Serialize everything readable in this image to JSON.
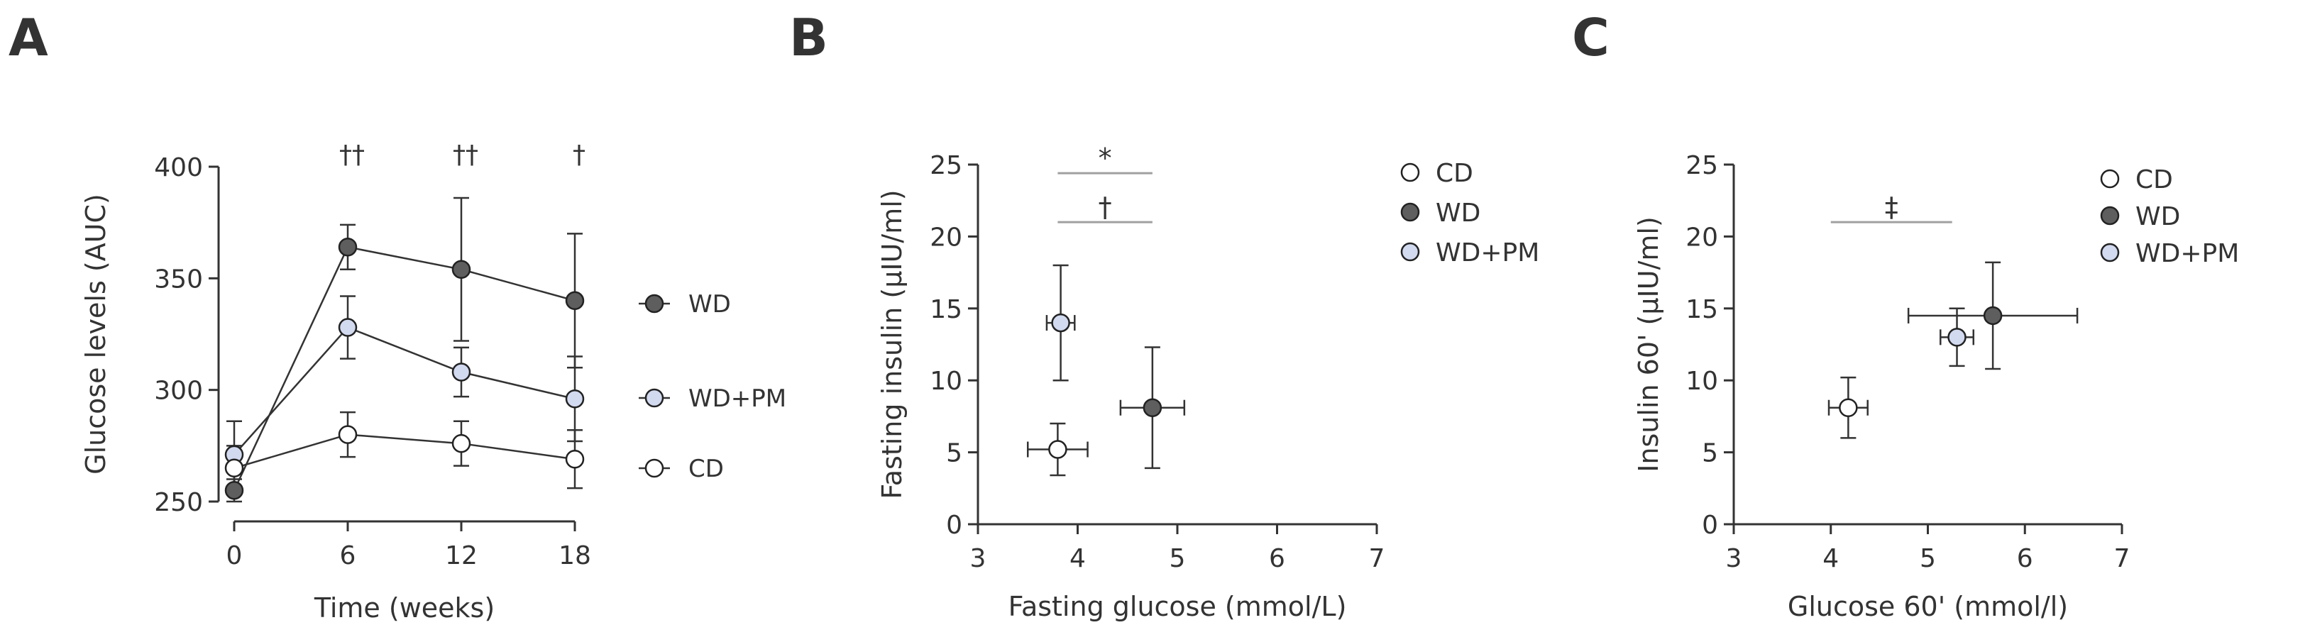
{
  "colors": {
    "CD": "#ffffff",
    "WD": "#5e5e5e",
    "WD+PM": "#d2daf0",
    "axis": "#333333",
    "sig": "#a0a0a0",
    "errbar": "#333333"
  },
  "chart_data": [
    {
      "panel": "A",
      "type": "line",
      "xlabel": "Time (weeks)",
      "ylabel": "Glucose levels (AUC)",
      "xlim": [
        0,
        18
      ],
      "ylim": [
        250,
        400
      ],
      "xticks": [
        0,
        6,
        12,
        18
      ],
      "xtick_labels": [
        "0",
        "6",
        "12",
        "18"
      ],
      "yticks": [
        250,
        300,
        350,
        400
      ],
      "ytick_labels": [
        "250",
        "300",
        "350",
        "400"
      ],
      "x": [
        0,
        6,
        12,
        18
      ],
      "series": [
        {
          "name": "WD",
          "label": "WD",
          "values": [
            255,
            364,
            354,
            340
          ],
          "err": [
            5,
            10,
            32,
            30
          ]
        },
        {
          "name": "WD+PM",
          "label": "WD+PM",
          "values": [
            271,
            328,
            308,
            296
          ],
          "err": [
            15,
            14,
            11,
            19
          ]
        },
        {
          "name": "CD",
          "label": "CD",
          "values": [
            265,
            280,
            276,
            269
          ],
          "err": [
            10,
            10,
            10,
            13
          ]
        }
      ],
      "annotations": [
        {
          "x": 6,
          "text": "††"
        },
        {
          "x": 12,
          "text": "††"
        },
        {
          "x": 18,
          "text": "†"
        }
      ]
    },
    {
      "panel": "B",
      "type": "scatter",
      "xlabel": "Fasting glucose (mmol/L)",
      "ylabel": "Fasting insulin (μIU/ml)",
      "xlim": [
        3,
        7
      ],
      "ylim": [
        0,
        25
      ],
      "xticks": [
        3,
        4,
        5,
        6,
        7
      ],
      "xtick_labels": [
        "3",
        "4",
        "5",
        "6",
        "7"
      ],
      "yticks": [
        0,
        5,
        10,
        15,
        20,
        25
      ],
      "ytick_labels": [
        "0",
        "5",
        "10",
        "15",
        "20",
        "25"
      ],
      "points": [
        {
          "name": "CD",
          "x": 3.8,
          "y": 5.2,
          "xerr": 0.3,
          "yerr": 1.8
        },
        {
          "name": "WD",
          "x": 4.75,
          "y": 8.1,
          "xerr": 0.32,
          "yerr": 4.2
        },
        {
          "name": "WD+PM",
          "x": 3.83,
          "y": 14.0,
          "xerr": 0.14,
          "yerr": 4.0
        }
      ],
      "legend": [
        "CD",
        "WD",
        "WD+PM"
      ],
      "significance": [
        {
          "x1": 3.8,
          "x2": 4.75,
          "y": 24.4,
          "text": "*"
        },
        {
          "x1": 3.8,
          "x2": 4.75,
          "y": 21.0,
          "text": "†"
        }
      ]
    },
    {
      "panel": "C",
      "type": "scatter",
      "xlabel": "Glucose 60' (mmol/l)",
      "ylabel": "Insulin 60' (μIU/ml)",
      "xlim": [
        3,
        7
      ],
      "ylim": [
        0,
        25
      ],
      "xticks": [
        3,
        4,
        5,
        6,
        7
      ],
      "xtick_labels": [
        "3",
        "4",
        "5",
        "6",
        "7"
      ],
      "yticks": [
        0,
        5,
        10,
        15,
        20,
        25
      ],
      "ytick_labels": [
        "0",
        "5",
        "10",
        "15",
        "20",
        "25"
      ],
      "points": [
        {
          "name": "CD",
          "x": 4.18,
          "y": 8.1,
          "xerr": 0.2,
          "yerr": 2.1
        },
        {
          "name": "WD",
          "x": 5.67,
          "y": 14.5,
          "xerr": 0.87,
          "yerr": 3.7
        },
        {
          "name": "WD+PM",
          "x": 5.3,
          "y": 13.0,
          "xerr": 0.17,
          "yerr": 2.0
        }
      ],
      "legend": [
        "CD",
        "WD",
        "WD+PM"
      ],
      "significance": [
        {
          "x1": 4.0,
          "x2": 5.25,
          "y": 21.0,
          "text": "‡"
        }
      ]
    }
  ]
}
